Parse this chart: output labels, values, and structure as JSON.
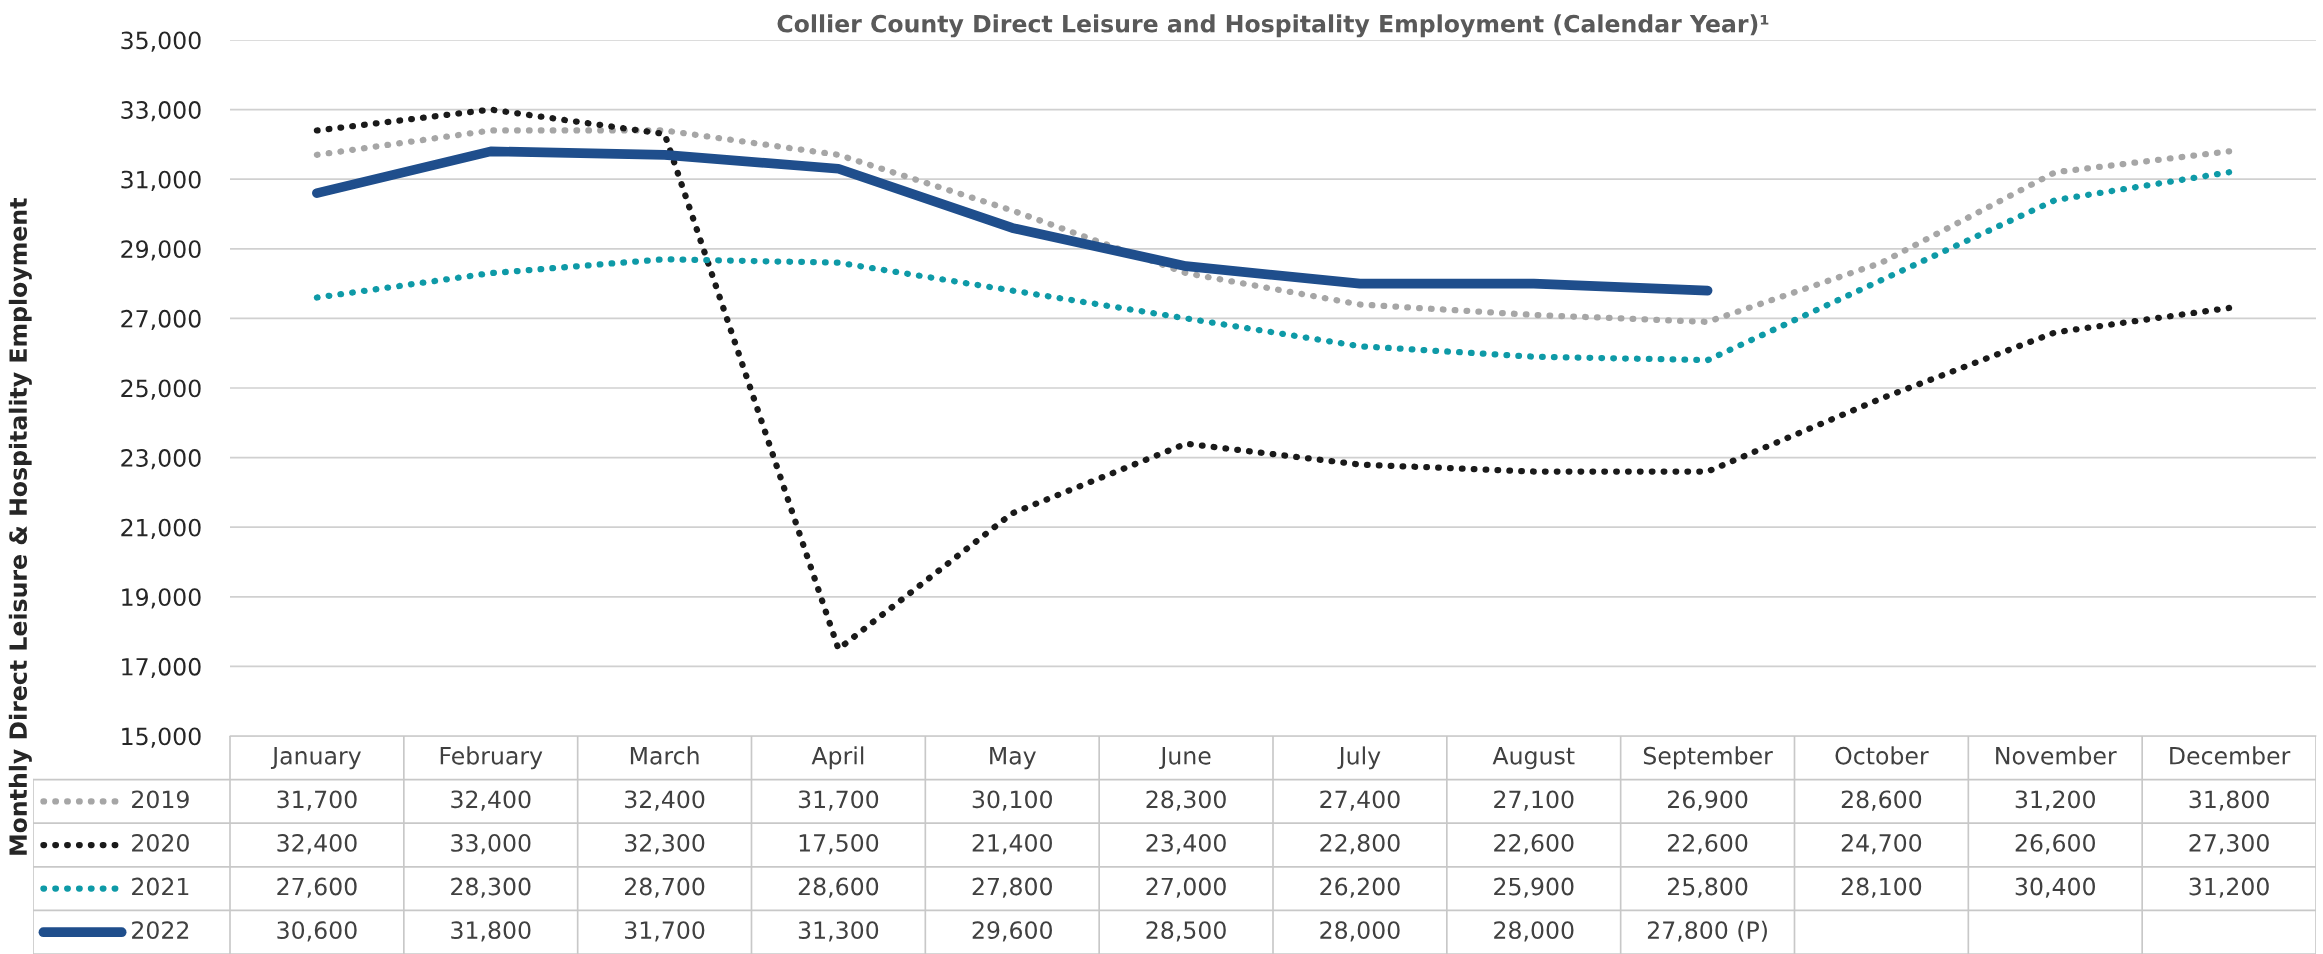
{
  "chart_data": {
    "type": "line",
    "title": "Collier County Direct Leisure and Hospitality Employment (Calendar Year)¹",
    "ylabel": "Monthly Direct Leisure & Hospitality Employment",
    "categories": [
      "January",
      "February",
      "March",
      "April",
      "May",
      "June",
      "July",
      "August",
      "September",
      "October",
      "November",
      "December"
    ],
    "ylim": [
      15000,
      35000
    ],
    "yticks": [
      {
        "value": 15000,
        "label": "15,000"
      },
      {
        "value": 17000,
        "label": "17,000"
      },
      {
        "value": 19000,
        "label": "19,000"
      },
      {
        "value": 21000,
        "label": "21,000"
      },
      {
        "value": 23000,
        "label": "23,000"
      },
      {
        "value": 25000,
        "label": "25,000"
      },
      {
        "value": 27000,
        "label": "27,000"
      },
      {
        "value": 29000,
        "label": "29,000"
      },
      {
        "value": 31000,
        "label": "31,000"
      },
      {
        "value": 33000,
        "label": "33,000"
      },
      {
        "value": 35000,
        "label": "35,000"
      }
    ],
    "grid": "y",
    "legend": "bottom left",
    "marker": "none",
    "series": [
      {
        "name": "2019",
        "color": "#a6a6a6",
        "line_style": "dotted",
        "values": [
          31700,
          32400,
          32400,
          31700,
          30100,
          28300,
          27400,
          27100,
          26900,
          28600,
          31200,
          31800
        ],
        "value_labels": [
          "31,700",
          "32,400",
          "32,400",
          "31,700",
          "30,100",
          "28,300",
          "27,400",
          "27,100",
          "26,900",
          "28,600",
          "31,200",
          "31,800"
        ]
      },
      {
        "name": "2020",
        "color": "#1a1a1a",
        "line_style": "dotted",
        "values": [
          32400,
          33000,
          32300,
          17500,
          21400,
          23400,
          22800,
          22600,
          22600,
          24700,
          26600,
          27300
        ],
        "value_labels": [
          "32,400",
          "33,000",
          "32,300",
          "17,500",
          "21,400",
          "23,400",
          "22,800",
          "22,600",
          "22,600",
          "24,700",
          "26,600",
          "27,300"
        ]
      },
      {
        "name": "2021",
        "color": "#0e9aa7",
        "line_style": "dotted",
        "values": [
          27600,
          28300,
          28700,
          28600,
          27800,
          27000,
          26200,
          25900,
          25800,
          28100,
          30400,
          31200
        ],
        "value_labels": [
          "27,600",
          "28,300",
          "28,700",
          "28,600",
          "27,800",
          "27,000",
          "26,200",
          "25,900",
          "25,800",
          "28,100",
          "30,400",
          "31,200"
        ]
      },
      {
        "name": "2022",
        "color": "#1f4e8c",
        "line_style": "solid",
        "values": [
          30600,
          31800,
          31700,
          31300,
          29600,
          28500,
          28000,
          28000,
          27800,
          null,
          null,
          null
        ],
        "value_labels": [
          "30,600",
          "31,800",
          "31,700",
          "31,300",
          "29,600",
          "28,500",
          "28,000",
          "28,000",
          "27,800 (P)",
          null,
          null,
          null
        ]
      }
    ]
  }
}
